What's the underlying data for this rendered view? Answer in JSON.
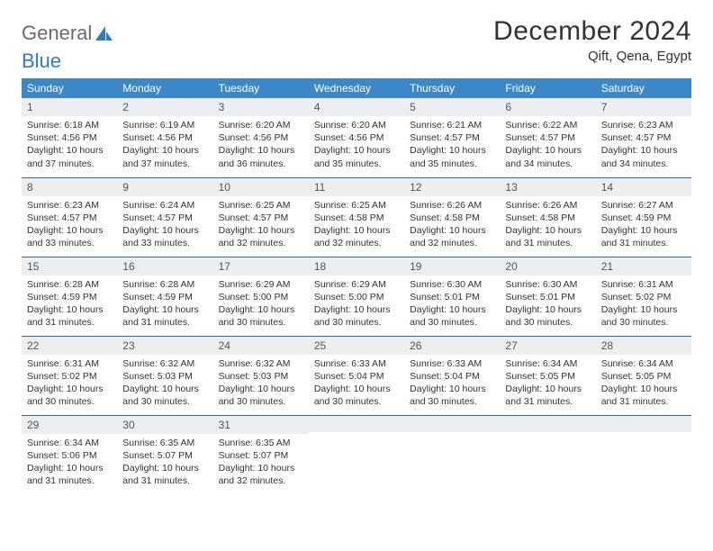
{
  "logo": {
    "text1": "General",
    "text2": "Blue"
  },
  "title": "December 2024",
  "location": "Qift, Qena, Egypt",
  "colors": {
    "header_bg": "#3b87c8",
    "header_text": "#ffffff",
    "row_divider": "#2f6aa3",
    "daynum_bg": "#eceeef",
    "logo_gray": "#6b6b6b",
    "logo_blue": "#2f7dc0"
  },
  "weekdays": [
    "Sunday",
    "Monday",
    "Tuesday",
    "Wednesday",
    "Thursday",
    "Friday",
    "Saturday"
  ],
  "weeks": [
    [
      {
        "n": "1",
        "sr": "6:18 AM",
        "ss": "4:56 PM",
        "dl": "10 hours and 37 minutes."
      },
      {
        "n": "2",
        "sr": "6:19 AM",
        "ss": "4:56 PM",
        "dl": "10 hours and 37 minutes."
      },
      {
        "n": "3",
        "sr": "6:20 AM",
        "ss": "4:56 PM",
        "dl": "10 hours and 36 minutes."
      },
      {
        "n": "4",
        "sr": "6:20 AM",
        "ss": "4:56 PM",
        "dl": "10 hours and 35 minutes."
      },
      {
        "n": "5",
        "sr": "6:21 AM",
        "ss": "4:57 PM",
        "dl": "10 hours and 35 minutes."
      },
      {
        "n": "6",
        "sr": "6:22 AM",
        "ss": "4:57 PM",
        "dl": "10 hours and 34 minutes."
      },
      {
        "n": "7",
        "sr": "6:23 AM",
        "ss": "4:57 PM",
        "dl": "10 hours and 34 minutes."
      }
    ],
    [
      {
        "n": "8",
        "sr": "6:23 AM",
        "ss": "4:57 PM",
        "dl": "10 hours and 33 minutes."
      },
      {
        "n": "9",
        "sr": "6:24 AM",
        "ss": "4:57 PM",
        "dl": "10 hours and 33 minutes."
      },
      {
        "n": "10",
        "sr": "6:25 AM",
        "ss": "4:57 PM",
        "dl": "10 hours and 32 minutes."
      },
      {
        "n": "11",
        "sr": "6:25 AM",
        "ss": "4:58 PM",
        "dl": "10 hours and 32 minutes."
      },
      {
        "n": "12",
        "sr": "6:26 AM",
        "ss": "4:58 PM",
        "dl": "10 hours and 32 minutes."
      },
      {
        "n": "13",
        "sr": "6:26 AM",
        "ss": "4:58 PM",
        "dl": "10 hours and 31 minutes."
      },
      {
        "n": "14",
        "sr": "6:27 AM",
        "ss": "4:59 PM",
        "dl": "10 hours and 31 minutes."
      }
    ],
    [
      {
        "n": "15",
        "sr": "6:28 AM",
        "ss": "4:59 PM",
        "dl": "10 hours and 31 minutes."
      },
      {
        "n": "16",
        "sr": "6:28 AM",
        "ss": "4:59 PM",
        "dl": "10 hours and 31 minutes."
      },
      {
        "n": "17",
        "sr": "6:29 AM",
        "ss": "5:00 PM",
        "dl": "10 hours and 30 minutes."
      },
      {
        "n": "18",
        "sr": "6:29 AM",
        "ss": "5:00 PM",
        "dl": "10 hours and 30 minutes."
      },
      {
        "n": "19",
        "sr": "6:30 AM",
        "ss": "5:01 PM",
        "dl": "10 hours and 30 minutes."
      },
      {
        "n": "20",
        "sr": "6:30 AM",
        "ss": "5:01 PM",
        "dl": "10 hours and 30 minutes."
      },
      {
        "n": "21",
        "sr": "6:31 AM",
        "ss": "5:02 PM",
        "dl": "10 hours and 30 minutes."
      }
    ],
    [
      {
        "n": "22",
        "sr": "6:31 AM",
        "ss": "5:02 PM",
        "dl": "10 hours and 30 minutes."
      },
      {
        "n": "23",
        "sr": "6:32 AM",
        "ss": "5:03 PM",
        "dl": "10 hours and 30 minutes."
      },
      {
        "n": "24",
        "sr": "6:32 AM",
        "ss": "5:03 PM",
        "dl": "10 hours and 30 minutes."
      },
      {
        "n": "25",
        "sr": "6:33 AM",
        "ss": "5:04 PM",
        "dl": "10 hours and 30 minutes."
      },
      {
        "n": "26",
        "sr": "6:33 AM",
        "ss": "5:04 PM",
        "dl": "10 hours and 30 minutes."
      },
      {
        "n": "27",
        "sr": "6:34 AM",
        "ss": "5:05 PM",
        "dl": "10 hours and 31 minutes."
      },
      {
        "n": "28",
        "sr": "6:34 AM",
        "ss": "5:05 PM",
        "dl": "10 hours and 31 minutes."
      }
    ],
    [
      {
        "n": "29",
        "sr": "6:34 AM",
        "ss": "5:06 PM",
        "dl": "10 hours and 31 minutes."
      },
      {
        "n": "30",
        "sr": "6:35 AM",
        "ss": "5:07 PM",
        "dl": "10 hours and 31 minutes."
      },
      {
        "n": "31",
        "sr": "6:35 AM",
        "ss": "5:07 PM",
        "dl": "10 hours and 32 minutes."
      },
      null,
      null,
      null,
      null
    ]
  ],
  "labels": {
    "sunrise": "Sunrise:",
    "sunset": "Sunset:",
    "daylight": "Daylight:"
  }
}
